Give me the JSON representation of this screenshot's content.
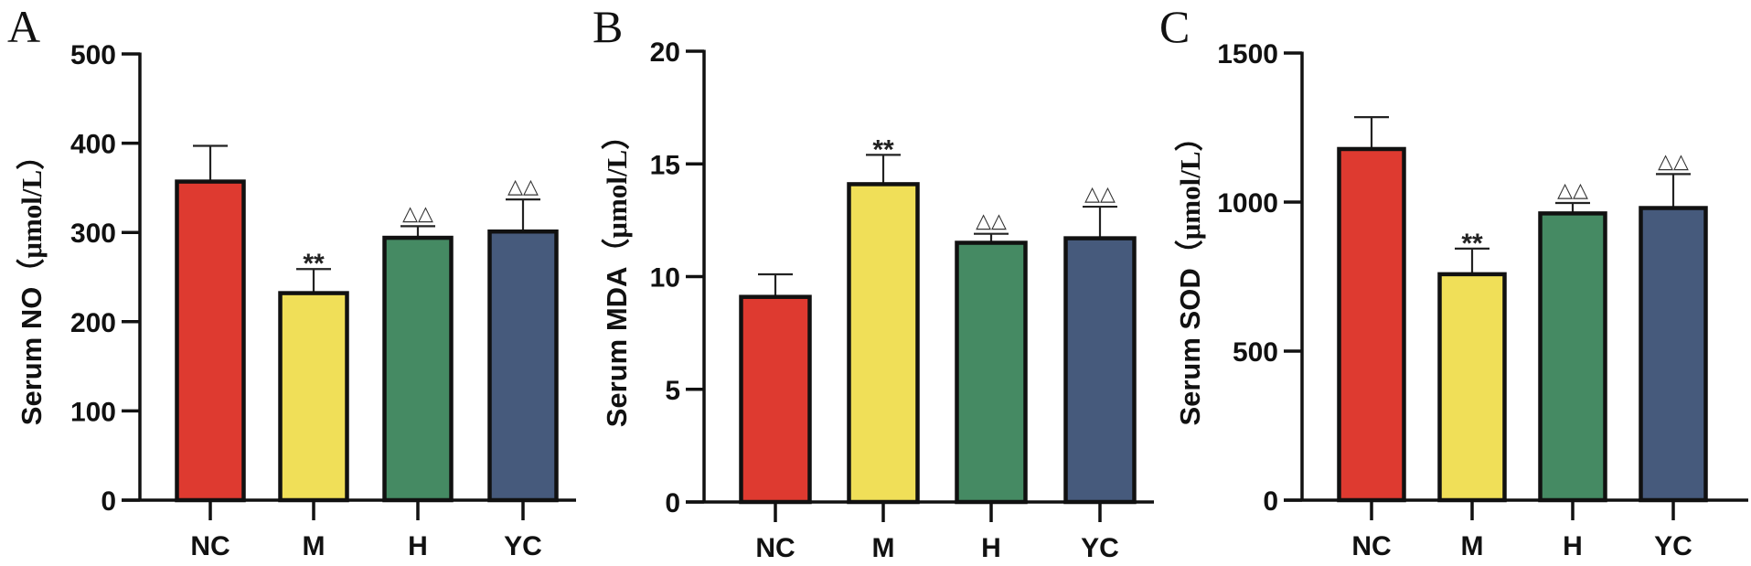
{
  "chart_data": [
    {
      "type": "bar",
      "panel": "A",
      "title": "",
      "xlabel": "",
      "ylabel_main": "Serum NO",
      "ylabel_unit": "（μmol/L）",
      "ylim": [
        0,
        500
      ],
      "yticks": [
        0,
        100,
        200,
        300,
        400,
        500
      ],
      "ytick_labels": [
        "0",
        "100",
        "200",
        "300",
        "400",
        "500"
      ],
      "categories": [
        "NC",
        "M",
        "H",
        "YC"
      ],
      "values": [
        357,
        232,
        294,
        301
      ],
      "errors": [
        40,
        27,
        13,
        36
      ],
      "annotations": [
        "",
        "**",
        "△△",
        "△△"
      ],
      "grid": false
    },
    {
      "type": "bar",
      "panel": "B",
      "title": "",
      "xlabel": "",
      "ylabel_main": "Serum MDA",
      "ylabel_unit": "（μmol/L）",
      "ylim": [
        0,
        20
      ],
      "yticks": [
        0,
        5,
        10,
        15,
        20
      ],
      "ytick_labels": [
        "0",
        "5",
        "10",
        "15",
        "20"
      ],
      "categories": [
        "NC",
        "M",
        "H",
        "YC"
      ],
      "values": [
        9.1,
        14.1,
        11.5,
        11.7
      ],
      "errors": [
        1.0,
        1.3,
        0.4,
        1.4
      ],
      "annotations": [
        "",
        "**",
        "△△",
        "△△"
      ],
      "grid": false
    },
    {
      "type": "bar",
      "panel": "C",
      "title": "",
      "xlabel": "",
      "ylabel_main": "Serum SOD",
      "ylabel_unit": "（μmol/L）",
      "ylim": [
        0,
        1500
      ],
      "yticks": [
        0,
        500,
        1000,
        1500
      ],
      "ytick_labels": [
        "0",
        "500",
        "1000",
        "1500"
      ],
      "categories": [
        "NC",
        "M",
        "H",
        "YC"
      ],
      "values": [
        1178,
        758,
        962,
        980
      ],
      "errors": [
        107,
        86,
        35,
        114
      ],
      "annotations": [
        "",
        "**",
        "△△",
        "△△"
      ],
      "grid": false
    }
  ],
  "bar_colors": [
    "#DE3A30",
    "#F0DF58",
    "#458A63",
    "#465A7C"
  ],
  "axis_color": "#111111"
}
